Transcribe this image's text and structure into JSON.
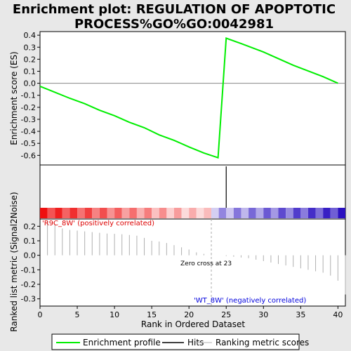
{
  "chart_data": {
    "type": "line",
    "title_lines": [
      "Enrichment plot: REGULATION OF APOPTOTIC",
      "PROCESS%GO%GO:0042981"
    ],
    "es_panel": {
      "ylabel": "Enrichment score (ES)",
      "ylim": [
        -0.68,
        0.43
      ],
      "yticks": [
        0.4,
        0.3,
        0.2,
        0.1,
        0.0,
        -0.1,
        -0.2,
        -0.3,
        -0.4,
        -0.5,
        -0.6
      ],
      "ytick_labels": [
        "0.4",
        "0.3",
        "0.2",
        "0.1",
        "0.0",
        "-0.1",
        "-0.2",
        "-0.3",
        "-0.4",
        "-0.5",
        "-0.6"
      ],
      "series": [
        {
          "x": [
            0,
            2,
            4,
            6,
            8,
            10,
            12,
            14,
            16,
            18,
            20,
            22,
            23.9,
            25,
            27,
            30,
            34,
            38,
            40
          ],
          "values": [
            -0.025,
            -0.075,
            -0.125,
            -0.17,
            -0.225,
            -0.27,
            -0.325,
            -0.37,
            -0.43,
            -0.475,
            -0.53,
            -0.58,
            -0.62,
            0.375,
            0.33,
            0.26,
            0.15,
            0.055,
            0.0
          ]
        }
      ],
      "color": "#00ee00",
      "hit_marker_x": 25
    },
    "hits_panel": {
      "positive_label": "'R9C_8W' (positively correlated)",
      "negative_label": "'WT_8W' (negatively correlated)",
      "hit_x": [
        25
      ],
      "positive_color": "#ee1010",
      "negative_color": "#2a10c0",
      "zero_cross_rank": 23,
      "xlim": [
        0,
        41
      ]
    },
    "metric_panel": {
      "ylabel": "Ranked list metric (Signal2Noise)",
      "ylim": [
        -0.35,
        0.25
      ],
      "yticks": [
        0.2,
        0.1,
        0.0,
        -0.1,
        -0.2,
        -0.3
      ],
      "ytick_labels": [
        "0.2",
        "0.1",
        "0.0",
        "-0.1",
        "-0.2",
        "-0.3"
      ],
      "values": [
        0.24,
        0.21,
        0.185,
        0.175,
        0.17,
        0.165,
        0.16,
        0.155,
        0.15,
        0.148,
        0.145,
        0.14,
        0.135,
        0.12,
        0.1,
        0.095,
        0.085,
        0.07,
        0.055,
        0.04,
        0.02,
        0.01,
        0.005,
        0.0,
        -0.005,
        -0.01,
        -0.015,
        -0.02,
        -0.03,
        -0.04,
        -0.05,
        -0.06,
        -0.07,
        -0.08,
        -0.09,
        -0.1,
        -0.11,
        -0.12,
        -0.14,
        -0.175,
        -0.27
      ],
      "zero_cross_label": "Zero cross at 23"
    },
    "xaxis": {
      "xlabel": "Rank in Ordered Dataset",
      "xlim": [
        0,
        41
      ],
      "xticks": [
        0,
        5,
        10,
        15,
        20,
        25,
        30,
        35,
        40
      ],
      "xtick_labels": [
        "0",
        "5",
        "10",
        "15",
        "20",
        "25",
        "30",
        "35",
        "40"
      ]
    },
    "legend": {
      "placement": "bottom",
      "items": [
        {
          "label": "Enrichment profile",
          "color": "#00ee00",
          "kind": "line"
        },
        {
          "label": "Hits",
          "color": "#000000",
          "kind": "line"
        },
        {
          "label": "Ranking metric scores",
          "color": "#b0b0b0",
          "kind": "line"
        }
      ]
    }
  }
}
